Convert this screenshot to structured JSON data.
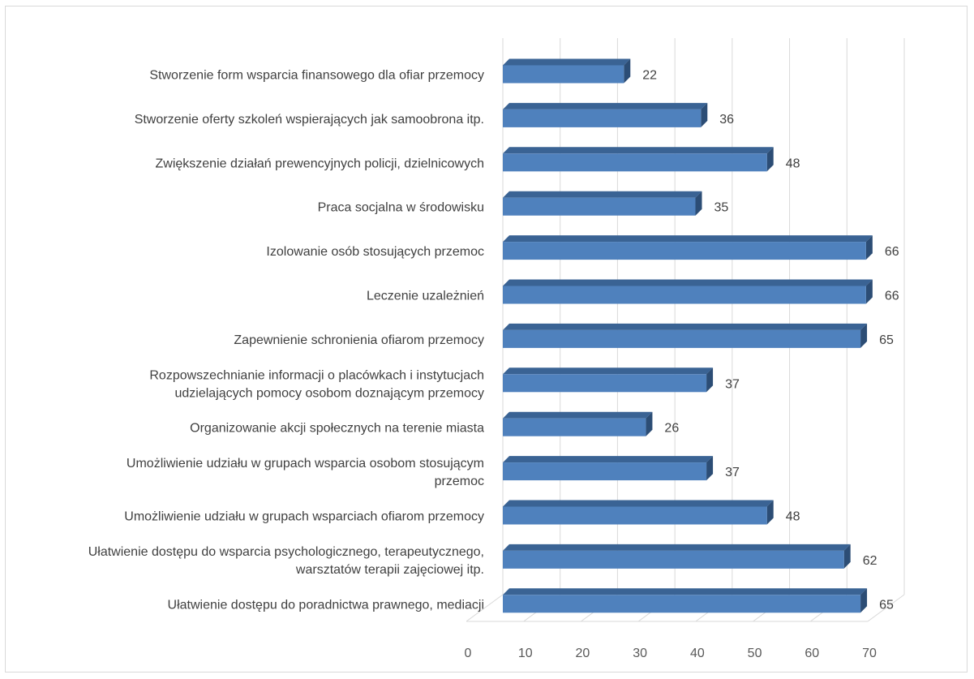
{
  "chart_data": {
    "type": "bar",
    "orientation": "horizontal",
    "style": "3d",
    "categories": [
      "Stworzenie form wsparcia finansowego dla ofiar przemocy",
      "Stworzenie oferty szkoleń wspierających jak samoobrona itp.",
      "Zwiększenie działań prewencyjnych policji, dzielnicowych",
      "Praca socjalna w środowisku",
      "Izolowanie osób stosujących przemoc",
      "Leczenie uzależnień",
      "Zapewnienie schronienia ofiarom przemocy",
      "Rozpowszechnianie informacji o placówkach i instytucjach udzielających pomocy osobom doznającym przemocy",
      "Organizowanie akcji społecznych na terenie miasta",
      "Umożliwienie udziału w grupach wsparcia osobom stosującym przemoc",
      "Umożliwienie udziału w grupach wsparciach ofiarom przemocy",
      "Ułatwienie dostępu do wsparcia psychologicznego, terapeutycznego, warsztatów terapii zajęciowej itp.",
      "Ułatwienie dostępu do poradnictwa prawnego, mediacji"
    ],
    "label_lines": [
      [
        "Stworzenie form wsparcia finansowego dla ofiar przemocy"
      ],
      [
        "Stworzenie oferty szkoleń wspierających jak samoobrona itp."
      ],
      [
        "Zwiększenie działań prewencyjnych policji, dzielnicowych"
      ],
      [
        "Praca socjalna w środowisku"
      ],
      [
        "Izolowanie osób stosujących przemoc"
      ],
      [
        "Leczenie uzależnień"
      ],
      [
        "Zapewnienie schronienia ofiarom przemocy"
      ],
      [
        "Rozpowszechnianie informacji o placówkach i instytucjach",
        "udzielających pomocy osobom doznającym przemocy"
      ],
      [
        "Organizowanie akcji społecznych na terenie miasta"
      ],
      [
        "Umożliwienie udziału w grupach wsparcia osobom stosującym",
        "przemoc"
      ],
      [
        "Umożliwienie udziału w grupach wsparciach ofiarom przemocy"
      ],
      [
        "Ułatwienie dostępu do wsparcia psychologicznego, terapeutycznego,",
        "warsztatów terapii zajęciowej itp."
      ],
      [
        "Ułatwienie dostępu do poradnictwa prawnego, mediacji"
      ]
    ],
    "values": [
      22,
      36,
      48,
      35,
      66,
      66,
      65,
      37,
      26,
      37,
      48,
      62,
      65
    ],
    "xlim": [
      0,
      70
    ],
    "xticks": [
      0,
      10,
      20,
      30,
      40,
      50,
      60,
      70
    ],
    "grid": true,
    "legend": "none",
    "colors": {
      "bar_front": "#4f81bd",
      "bar_top": "#3a6394",
      "bar_side": "#2c4d75",
      "grid": "#d9d9d9",
      "text": "#404040"
    }
  }
}
